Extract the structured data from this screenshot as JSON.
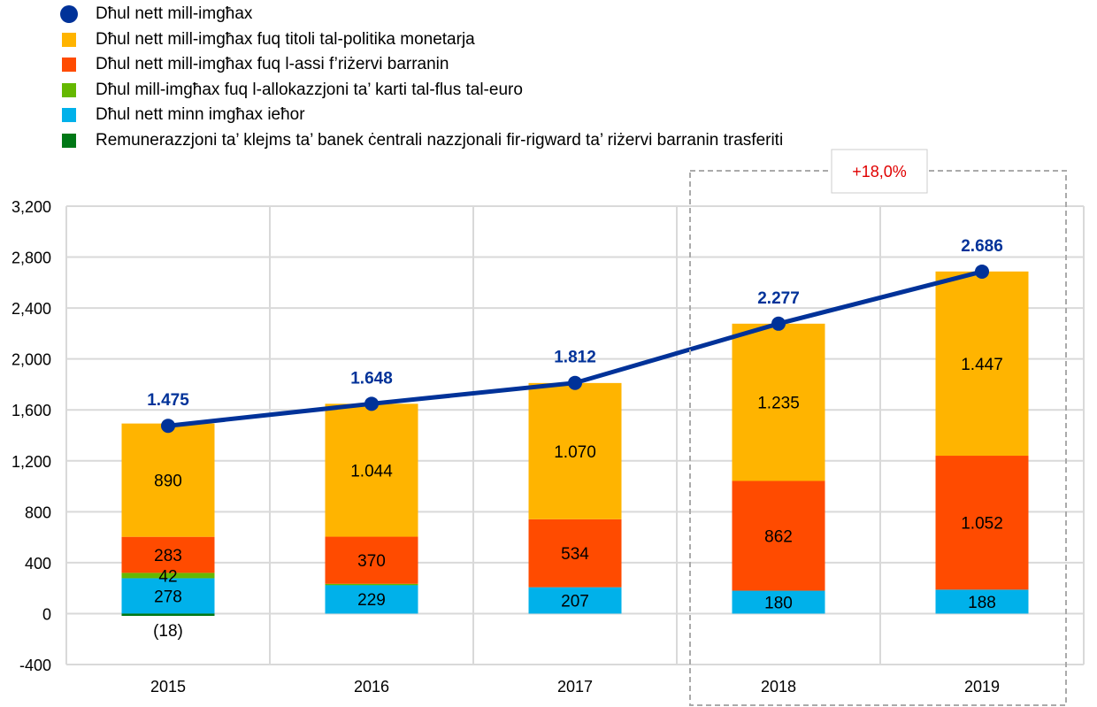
{
  "chart_data": {
    "type": "bar",
    "stacked": true,
    "categories": [
      "2015",
      "2016",
      "2017",
      "2018",
      "2019"
    ],
    "ylim": [
      -400,
      3200
    ],
    "yticks": [
      "-400",
      "0",
      "400",
      "800",
      "1,200",
      "1,600",
      "2,000",
      "2,400",
      "2,800",
      "3,200"
    ],
    "ytick_values": [
      -400,
      0,
      400,
      800,
      1200,
      1600,
      2000,
      2400,
      2800,
      3200
    ],
    "grid": true,
    "legend_position": "top-left",
    "series": [
      {
        "name": "Dħul nett minn imgħax ieħor",
        "color": "#00b1ea",
        "values": [
          278,
          229,
          207,
          180,
          188
        ],
        "labels": [
          "278",
          "229",
          "207",
          "180",
          "188"
        ]
      },
      {
        "name": "Dħul mill-imgħax fuq l-allokazzjoni ta’ karti tal-flus tal-euro",
        "color": "#65b800",
        "values": [
          42,
          5,
          0,
          0,
          0
        ],
        "labels": [
          "42",
          "",
          "",
          "",
          ""
        ]
      },
      {
        "name": "Dħul nett mill-imgħax fuq l-assi f’riżervi barranin",
        "color": "#ff4b00",
        "values": [
          283,
          370,
          534,
          862,
          1052
        ],
        "labels": [
          "283",
          "370",
          "534",
          "862",
          "1.052"
        ]
      },
      {
        "name": "Dħul nett mill-imgħax fuq titoli tal-politika monetarja",
        "color": "#ffb400",
        "values": [
          890,
          1044,
          1070,
          1235,
          1447
        ],
        "labels": [
          "890",
          "1.044",
          "1.070",
          "1.235",
          "1.447"
        ]
      },
      {
        "name": "Remunerazzjoni ta’ klejms ta’ banek ċentrali nazzjonali fir-rigward ta’ riżervi barranin trasferiti",
        "color": "#007816",
        "values": [
          -18,
          0,
          0,
          0,
          0
        ],
        "labels": [
          "(18)",
          "",
          "",
          "",
          ""
        ]
      }
    ],
    "line": {
      "name": "Dħul nett mill-imgħax",
      "color": "#003299",
      "values": [
        1475,
        1648,
        1812,
        2277,
        2686
      ],
      "labels": [
        "1.475",
        "1.648",
        "1.812",
        "2.277",
        "2.686"
      ]
    },
    "annotation": {
      "text": "+18,0%",
      "color": "#e00000",
      "categories": [
        "2018",
        "2019"
      ]
    }
  }
}
